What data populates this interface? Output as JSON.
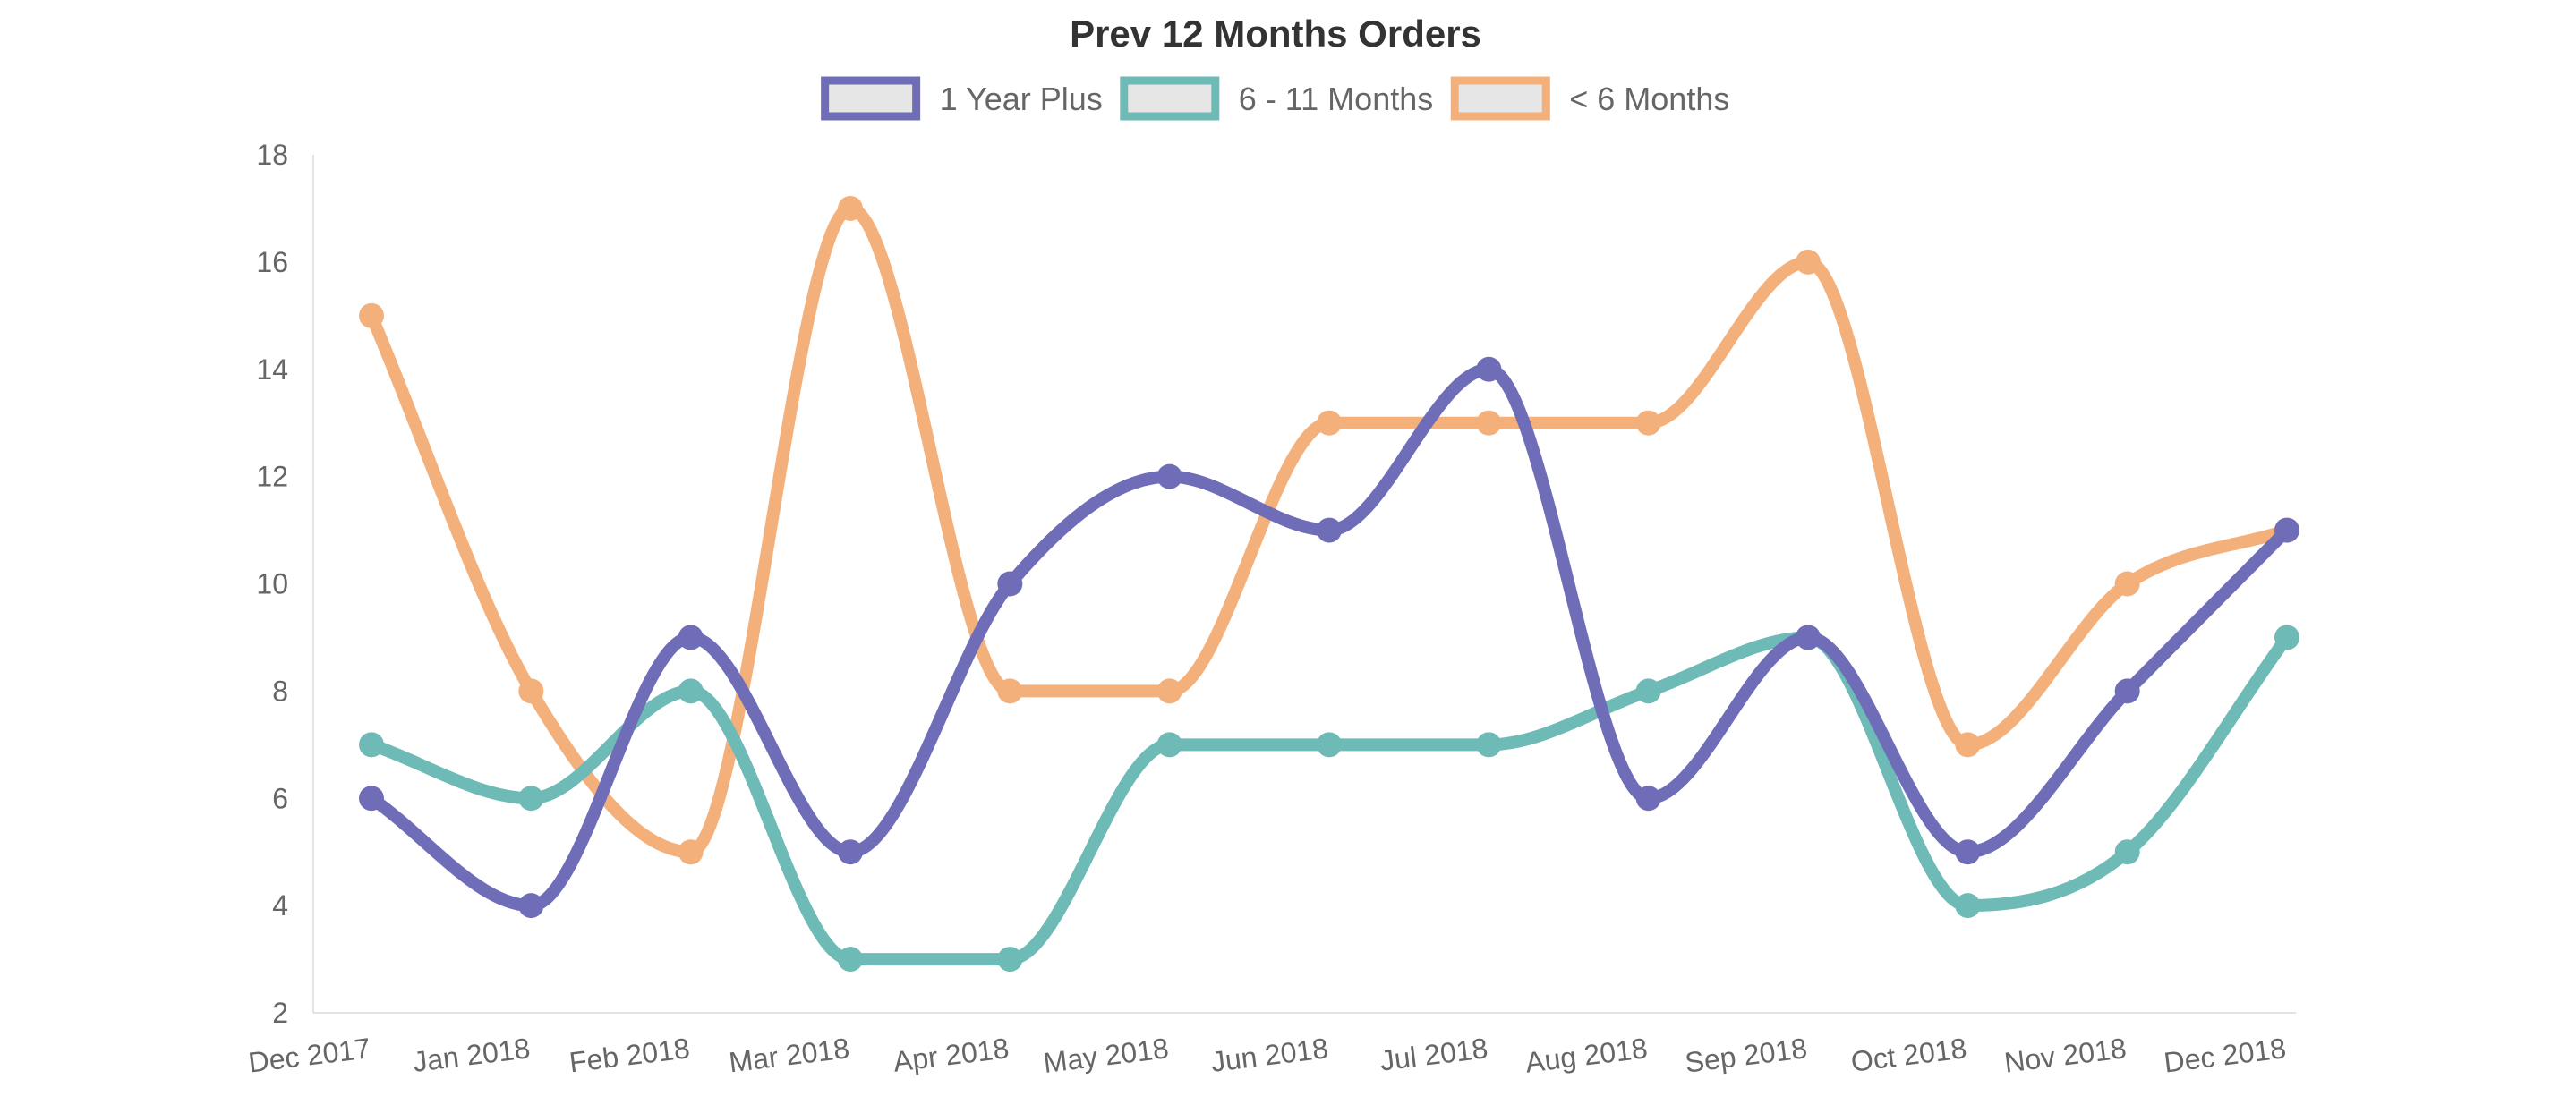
{
  "chart_data": {
    "type": "line",
    "title": "Prev 12 Months Orders",
    "xlabel": "",
    "ylabel": "",
    "categories": [
      "Dec 2017",
      "Jan 2018",
      "Feb 2018",
      "Mar 2018",
      "Apr 2018",
      "May 2018",
      "Jun 2018",
      "Jul 2018",
      "Aug 2018",
      "Sep 2018",
      "Oct 2018",
      "Nov 2018",
      "Dec 2018"
    ],
    "ylim": [
      2,
      18
    ],
    "yticks": [
      2,
      4,
      6,
      8,
      10,
      12,
      14,
      16,
      18
    ],
    "grid": false,
    "legend_position": "top-center",
    "series": [
      {
        "name": "1 Year Plus",
        "color": "#6f6db8",
        "values": [
          6,
          4,
          9,
          5,
          10,
          12,
          11,
          14,
          6,
          9,
          5,
          8,
          11
        ]
      },
      {
        "name": "6 - 11 Months",
        "color": "#6dbab6",
        "values": [
          7,
          6,
          8,
          3,
          3,
          7,
          7,
          7,
          8,
          9,
          4,
          5,
          9
        ]
      },
      {
        "name": "< 6 Months",
        "color": "#f4b07b",
        "values": [
          15,
          8,
          5,
          17,
          8,
          8,
          13,
          13,
          13,
          16,
          7,
          10,
          11
        ]
      }
    ]
  }
}
